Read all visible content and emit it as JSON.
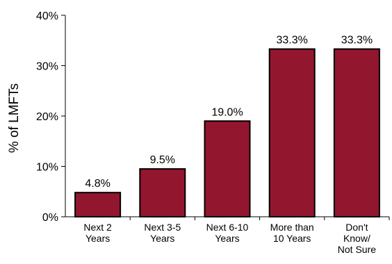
{
  "chart_data": {
    "type": "bar",
    "title": "",
    "xlabel": "",
    "ylabel": "% of LMFTs",
    "ylim": [
      0,
      40
    ],
    "yticks": [
      0,
      10,
      20,
      30,
      40
    ],
    "ytick_labels": [
      "0%",
      "10%",
      "20%",
      "30%",
      "40%"
    ],
    "grid": false,
    "legend": "none",
    "categories": [
      [
        "Next 2",
        "Years"
      ],
      [
        "Next 3-5",
        "Years"
      ],
      [
        "Next 6-10",
        "Years"
      ],
      [
        "More than",
        "10 Years"
      ],
      [
        "Don't",
        "Know/",
        "Not Sure"
      ]
    ],
    "values": [
      4.8,
      9.5,
      19.0,
      33.3,
      33.3
    ],
    "value_labels": [
      "4.8%",
      "9.5%",
      "19.0%",
      "33.3%",
      "33.3%"
    ],
    "colors": {
      "bar_fill": "#93162f",
      "bar_stroke": "#000000",
      "axis": "#000000"
    }
  }
}
